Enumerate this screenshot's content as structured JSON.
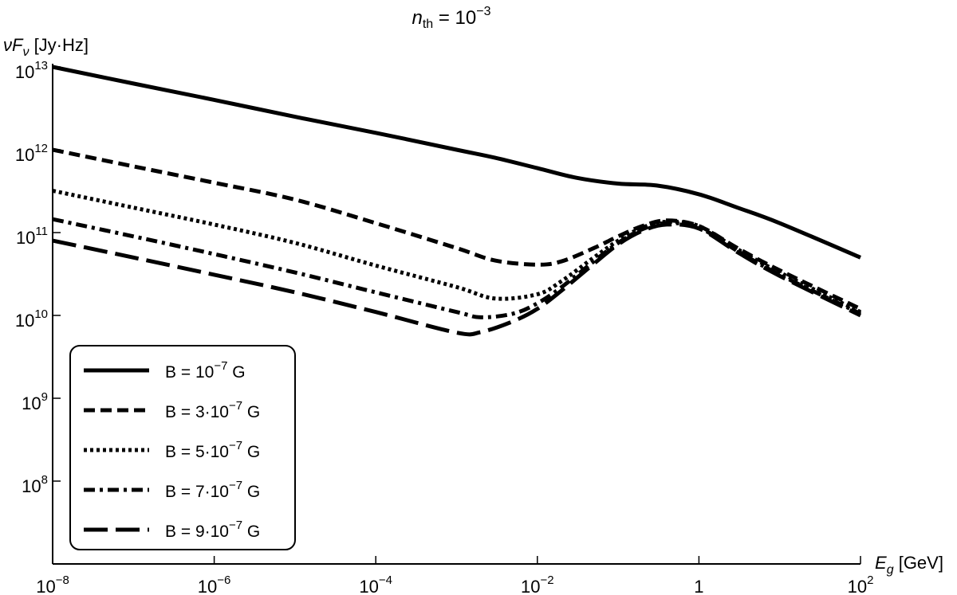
{
  "chart_data": {
    "type": "line",
    "title": {
      "base": "n",
      "sub": "th",
      "rest": " = 10",
      "sup": "−3"
    },
    "xlabel": {
      "base": "E",
      "sub": "g",
      "rest": " [GeV]"
    },
    "ylabel": {
      "base": "νF",
      "sub": "ν",
      "rest": " [Jy·Hz]"
    },
    "x_scale": "log",
    "y_scale": "log",
    "xlim": [
      1e-08,
      100
    ],
    "ylim": [
      10000000.0,
      10000000000000.0
    ],
    "grid": false,
    "legend_position": "bottom-left",
    "x_ticks": [
      {
        "value": 1e-08,
        "base": "10",
        "sup": "−8"
      },
      {
        "value": 1e-06,
        "base": "10",
        "sup": "−6"
      },
      {
        "value": 0.0001,
        "base": "10",
        "sup": "−4"
      },
      {
        "value": 0.01,
        "base": "10",
        "sup": "−2"
      },
      {
        "value": 1,
        "base": "1",
        "sup": ""
      },
      {
        "value": 100,
        "base": "10",
        "sup": "2"
      }
    ],
    "y_ticks": [
      {
        "value": 10000000000000.0,
        "base": "10",
        "sup": "13"
      },
      {
        "value": 1000000000000.0,
        "base": "10",
        "sup": "12"
      },
      {
        "value": 100000000000.0,
        "base": "10",
        "sup": "11"
      },
      {
        "value": 10000000000.0,
        "base": "10",
        "sup": "10"
      },
      {
        "value": 1000000000.0,
        "base": "10",
        "sup": "9"
      },
      {
        "value": 100000000.0,
        "base": "10",
        "sup": "8"
      }
    ],
    "series": [
      {
        "name": "B = 10⁻⁷ G",
        "label": {
          "pre": "B = 10",
          "sup": "−7",
          "post": " G"
        },
        "dash": "solid",
        "x": [
          1e-08,
          1e-07,
          1e-06,
          1e-05,
          0.0001,
          0.001,
          0.003,
          0.01,
          0.03,
          0.1,
          0.3,
          1,
          3,
          10,
          100
        ],
        "y": [
          10000000000000.0,
          6300000000000.0,
          4000000000000.0,
          2500000000000.0,
          1600000000000.0,
          1000000000000.0,
          800000000000.0,
          600000000000.0,
          460000000000.0,
          390000000000.0,
          370000000000.0,
          290000000000.0,
          200000000000.0,
          130000000000.0,
          50000000000.0
        ]
      },
      {
        "name": "B = 3·10⁻⁷ G",
        "label": {
          "pre": "B = 3·10",
          "sup": "−7",
          "post": " G"
        },
        "dash": "dashed",
        "x": [
          1e-08,
          1e-07,
          1e-06,
          1e-05,
          0.0001,
          0.001,
          0.003,
          0.01,
          0.02,
          0.05,
          0.1,
          0.2,
          0.4,
          1,
          3,
          10,
          100
        ],
        "y": [
          1000000000000.0,
          630000000000.0,
          400000000000.0,
          250000000000.0,
          130000000000.0,
          65000000000.0,
          46000000000.0,
          41000000000.0,
          45000000000.0,
          65000000000.0,
          90000000000.0,
          120000000000.0,
          140000000000.0,
          120000000000.0,
          65000000000.0,
          35000000000.0,
          12000000000.0
        ]
      },
      {
        "name": "B = 5·10⁻⁷ G",
        "label": {
          "pre": "B = 5·10",
          "sup": "−7",
          "post": " G"
        },
        "dash": "dotted",
        "x": [
          1e-08,
          1e-07,
          1e-06,
          1e-05,
          0.0001,
          0.001,
          0.003,
          0.01,
          0.02,
          0.05,
          0.1,
          0.2,
          0.4,
          1,
          3,
          10,
          100
        ],
        "y": [
          320000000000.0,
          200000000000.0,
          125000000000.0,
          75000000000.0,
          40000000000.0,
          22000000000.0,
          16000000000.0,
          18000000000.0,
          26000000000.0,
          50000000000.0,
          80000000000.0,
          115000000000.0,
          135000000000.0,
          120000000000.0,
          63000000000.0,
          33000000000.0,
          11000000000.0
        ]
      },
      {
        "name": "B = 7·10⁻⁷ G",
        "label": {
          "pre": "B = 7·10",
          "sup": "−7",
          "post": " G"
        },
        "dash": "dash-dot",
        "x": [
          1e-08,
          1e-07,
          1e-06,
          1e-05,
          0.0001,
          0.001,
          0.002,
          0.005,
          0.01,
          0.02,
          0.05,
          0.1,
          0.2,
          0.4,
          1,
          3,
          10,
          100
        ],
        "y": [
          145000000000.0,
          90000000000.0,
          55000000000.0,
          33000000000.0,
          19000000000.0,
          11000000000.0,
          9500000000.0,
          10500000000.0,
          14000000000.0,
          22000000000.0,
          45000000000.0,
          75000000000.0,
          110000000000.0,
          130000000000.0,
          115000000000.0,
          60000000000.0,
          31000000000.0,
          10500000000.0
        ]
      },
      {
        "name": "B = 9·10⁻⁷ G",
        "label": {
          "pre": "B = 9·10",
          "sup": "−7",
          "post": " G"
        },
        "dash": "long-dash",
        "x": [
          1e-08,
          1e-07,
          1e-06,
          1e-05,
          0.0001,
          0.001,
          0.002,
          0.005,
          0.01,
          0.02,
          0.05,
          0.1,
          0.2,
          0.4,
          1,
          3,
          10,
          100
        ],
        "y": [
          80000000000.0,
          50000000000.0,
          31000000000.0,
          19000000000.0,
          11000000000.0,
          6200000000.0,
          6300000000.0,
          8500000000.0,
          12000000000.0,
          20000000000.0,
          42000000000.0,
          72000000000.0,
          105000000000.0,
          125000000000.0,
          112000000000.0,
          58000000000.0,
          30000000000.0,
          10000000000.0
        ]
      }
    ]
  }
}
